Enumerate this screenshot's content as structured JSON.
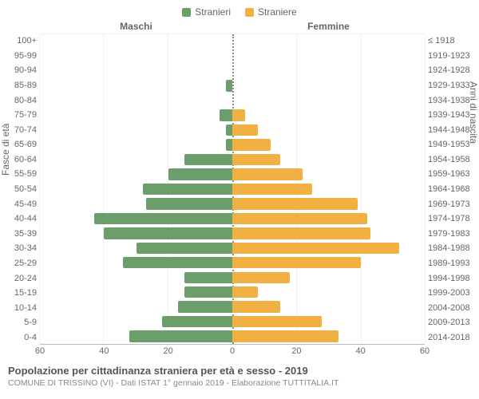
{
  "chart": {
    "type": "population-pyramid",
    "legend": {
      "male": {
        "label": "Stranieri",
        "color": "#6b9e6b"
      },
      "female": {
        "label": "Straniere",
        "color": "#f0b042"
      }
    },
    "headers": {
      "left": "Maschi",
      "right": "Femmine"
    },
    "y_axis_left_label": "Fasce di età",
    "y_axis_right_label": "Anni di nascita",
    "x_max": 60,
    "x_ticks": [
      60,
      40,
      20,
      0,
      20,
      40,
      60
    ],
    "background_color": "#ffffff",
    "grid_color": "#f0f0f0",
    "center_line_color": "#888888",
    "title": "Popolazione per cittadinanza straniera per età e sesso - 2019",
    "subtitle": "COMUNE DI TRISSINO (VI) - Dati ISTAT 1° gennaio 2019 - Elaborazione TUTTITALIA.IT",
    "rows": [
      {
        "age": "100+",
        "birth": "≤ 1918",
        "male": 0,
        "female": 0
      },
      {
        "age": "95-99",
        "birth": "1919-1923",
        "male": 0,
        "female": 0
      },
      {
        "age": "90-94",
        "birth": "1924-1928",
        "male": 0,
        "female": 0
      },
      {
        "age": "85-89",
        "birth": "1929-1933",
        "male": 2,
        "female": 0
      },
      {
        "age": "80-84",
        "birth": "1934-1938",
        "male": 0,
        "female": 0
      },
      {
        "age": "75-79",
        "birth": "1939-1943",
        "male": 4,
        "female": 4
      },
      {
        "age": "70-74",
        "birth": "1944-1948",
        "male": 2,
        "female": 8
      },
      {
        "age": "65-69",
        "birth": "1949-1953",
        "male": 2,
        "female": 12
      },
      {
        "age": "60-64",
        "birth": "1954-1958",
        "male": 15,
        "female": 15
      },
      {
        "age": "55-59",
        "birth": "1959-1963",
        "male": 20,
        "female": 22
      },
      {
        "age": "50-54",
        "birth": "1964-1968",
        "male": 28,
        "female": 25
      },
      {
        "age": "45-49",
        "birth": "1969-1973",
        "male": 27,
        "female": 39
      },
      {
        "age": "40-44",
        "birth": "1974-1978",
        "male": 43,
        "female": 42
      },
      {
        "age": "35-39",
        "birth": "1979-1983",
        "male": 40,
        "female": 43
      },
      {
        "age": "30-34",
        "birth": "1984-1988",
        "male": 30,
        "female": 52
      },
      {
        "age": "25-29",
        "birth": "1989-1993",
        "male": 34,
        "female": 40
      },
      {
        "age": "20-24",
        "birth": "1994-1998",
        "male": 15,
        "female": 18
      },
      {
        "age": "15-19",
        "birth": "1999-2003",
        "male": 15,
        "female": 8
      },
      {
        "age": "10-14",
        "birth": "2004-2008",
        "male": 17,
        "female": 15
      },
      {
        "age": "5-9",
        "birth": "2009-2013",
        "male": 22,
        "female": 28
      },
      {
        "age": "0-4",
        "birth": "2014-2018",
        "male": 32,
        "female": 33
      }
    ]
  }
}
